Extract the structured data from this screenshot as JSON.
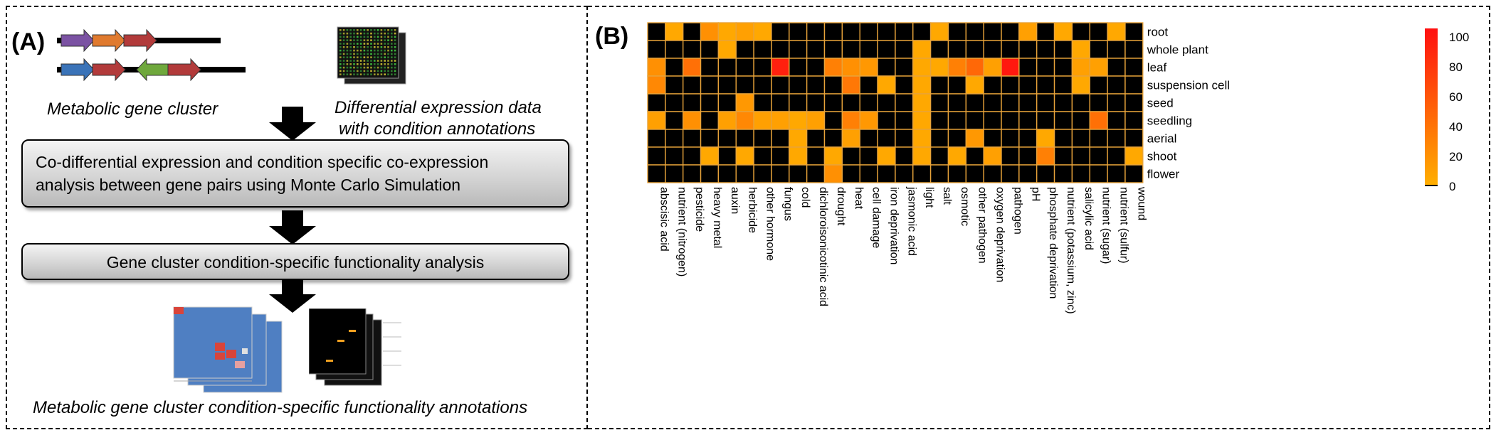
{
  "panel_a": {
    "label": "(A)",
    "gene_cluster_caption": "Metabolic gene cluster",
    "expression_caption_line1": "Differential expression data",
    "expression_caption_line2": "with condition annotations",
    "step1_line1": "Co-differential expression and condition specific co-expression",
    "step1_line2": "analysis between gene pairs using Monte Carlo Simulation",
    "step2": "Gene cluster condition-specific functionality analysis",
    "result_caption": "Metabolic gene cluster condition-specific functionality annotations",
    "gene_arrow_colors": [
      "#7b52a3",
      "#e07a2e",
      "#b23a3a",
      "#3a73b8",
      "#b23a3a",
      "#6fa83c",
      "#b23a3a"
    ]
  },
  "panel_b": {
    "label": "(B)",
    "chart_data": {
      "type": "heatmap",
      "rows": [
        "root",
        "whole plant",
        "leaf",
        "suspension cell",
        "seed",
        "seedling",
        "aerial",
        "shoot",
        "flower"
      ],
      "columns": [
        "abscisic acid",
        "nutrient (nitrogen)",
        "pesticide",
        "heavy metal",
        "auxin",
        "herbicide",
        "other hormone",
        "fungus",
        "cold",
        "dichloroisonicotinic acid",
        "drought",
        "heat",
        "cell damage",
        "iron deprivation",
        "jasmonic acid",
        "light",
        "salt",
        "osmotic",
        "other pathogen",
        "oxygen deprivation",
        "pathogen",
        "pH",
        "phosphate deprivation",
        "nutrient (potassium, zinc)",
        "salicylic acid",
        "nutrient (sugar)",
        "nutrient (sulfur)",
        "wound"
      ],
      "values": [
        [
          0,
          5,
          0,
          20,
          5,
          10,
          5,
          0,
          0,
          0,
          0,
          0,
          0,
          0,
          0,
          0,
          5,
          0,
          0,
          0,
          0,
          10,
          0,
          5,
          0,
          0,
          5,
          0
        ],
        [
          0,
          0,
          0,
          0,
          5,
          0,
          0,
          0,
          0,
          0,
          0,
          0,
          0,
          0,
          0,
          5,
          0,
          0,
          0,
          0,
          0,
          0,
          0,
          0,
          5,
          0,
          0,
          0
        ],
        [
          20,
          0,
          40,
          0,
          0,
          0,
          0,
          90,
          0,
          0,
          30,
          20,
          15,
          0,
          0,
          5,
          5,
          30,
          45,
          10,
          95,
          0,
          0,
          0,
          10,
          10,
          0,
          0
        ],
        [
          25,
          0,
          0,
          0,
          0,
          0,
          0,
          0,
          0,
          0,
          0,
          35,
          0,
          5,
          0,
          5,
          0,
          0,
          5,
          0,
          0,
          0,
          0,
          0,
          5,
          0,
          0,
          0
        ],
        [
          0,
          0,
          0,
          0,
          0,
          15,
          0,
          0,
          0,
          0,
          0,
          0,
          0,
          0,
          0,
          5,
          0,
          0,
          0,
          0,
          0,
          0,
          0,
          0,
          0,
          0,
          0,
          0
        ],
        [
          10,
          0,
          20,
          0,
          10,
          25,
          10,
          10,
          5,
          10,
          0,
          30,
          15,
          0,
          0,
          5,
          0,
          0,
          0,
          0,
          0,
          0,
          0,
          0,
          0,
          40,
          0,
          0
        ],
        [
          0,
          0,
          0,
          0,
          0,
          0,
          0,
          0,
          5,
          0,
          0,
          10,
          0,
          0,
          0,
          5,
          0,
          0,
          15,
          0,
          0,
          0,
          5,
          0,
          0,
          0,
          0,
          0
        ],
        [
          0,
          0,
          0,
          5,
          0,
          5,
          0,
          0,
          5,
          0,
          5,
          0,
          0,
          5,
          0,
          5,
          0,
          5,
          0,
          10,
          0,
          0,
          30,
          0,
          0,
          0,
          0,
          5
        ],
        [
          0,
          0,
          0,
          0,
          0,
          0,
          0,
          0,
          0,
          0,
          20,
          0,
          0,
          0,
          0,
          0,
          0,
          0,
          0,
          0,
          0,
          0,
          0,
          0,
          0,
          0,
          0,
          0
        ]
      ],
      "colorbar_ticks": [
        0,
        20,
        40,
        60,
        80,
        100
      ],
      "colorbar_range": [
        0,
        100
      ],
      "colors": {
        "zero": "#000000",
        "low": "#ffb000",
        "high": "#ff1010",
        "cell_border": "#e8a33a"
      }
    }
  }
}
